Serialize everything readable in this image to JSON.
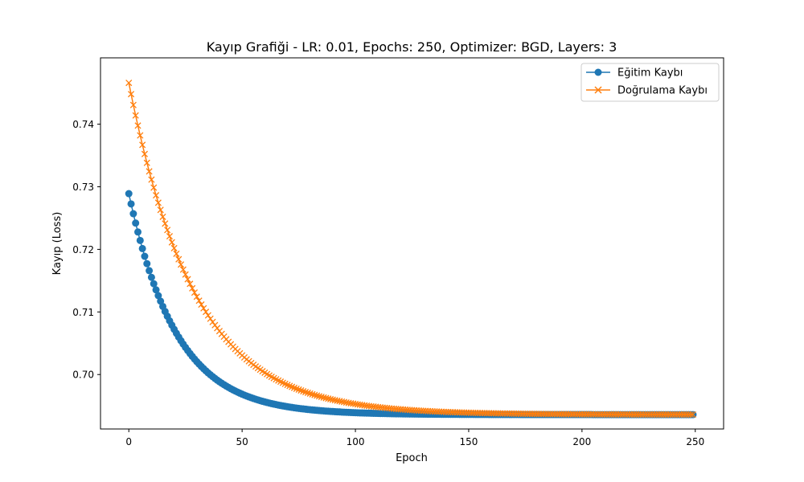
{
  "chart_data": {
    "type": "line",
    "title": "Kayıp Grafiği - LR: 0.01, Epochs: 250, Optimizer: BGD, Layers: 3",
    "xlabel": "Epoch",
    "ylabel": "Kayıp (Loss)",
    "xlim": [
      -12.5,
      262.5
    ],
    "ylim": [
      0.6913,
      0.7506
    ],
    "xticks": [
      0,
      50,
      100,
      150,
      200,
      250
    ],
    "yticks": [
      0.7,
      0.71,
      0.72,
      0.73,
      0.74
    ],
    "xtick_labels": [
      "0",
      "50",
      "100",
      "150",
      "200",
      "250"
    ],
    "ytick_labels": [
      "0.70",
      "0.71",
      "0.72",
      "0.73",
      "0.74"
    ],
    "legend_position": "top-right",
    "grid": false,
    "x": {
      "start": 0,
      "end": 249,
      "step": 1
    },
    "series": [
      {
        "name": "Eğitim Kaybı",
        "color": "#1f77b4",
        "marker": "circle",
        "model": "exponential_decay",
        "start": 0.7289,
        "asymptote": 0.6936,
        "tau": 21
      },
      {
        "name": "Doğrulama Kaybı",
        "color": "#ff7f0e",
        "marker": "x",
        "model": "exponential_decay",
        "start": 0.7466,
        "asymptote": 0.6936,
        "tau": 29
      }
    ]
  }
}
